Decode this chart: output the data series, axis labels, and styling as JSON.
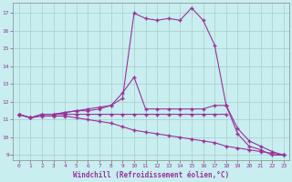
{
  "xlabel": "Windchill (Refroidissement éolien,°C)",
  "bg_color": "#c8eef0",
  "grid_color": "#aacccc",
  "line_color": "#993399",
  "xlim": [
    -0.5,
    23.5
  ],
  "ylim": [
    8.7,
    17.6
  ],
  "xticks": [
    0,
    1,
    2,
    3,
    4,
    5,
    6,
    7,
    8,
    9,
    10,
    11,
    12,
    13,
    14,
    15,
    16,
    17,
    18,
    19,
    20,
    21,
    22,
    23
  ],
  "yticks": [
    9,
    10,
    11,
    12,
    13,
    14,
    15,
    16,
    17
  ],
  "line1_x": [
    0,
    1,
    2,
    3,
    4,
    5,
    6,
    7,
    8,
    9,
    10,
    11,
    12,
    13,
    14,
    15,
    16,
    17,
    18,
    19,
    20,
    21,
    22,
    23
  ],
  "line1_y": [
    11.3,
    11.1,
    11.3,
    11.3,
    11.4,
    11.5,
    11.6,
    11.7,
    11.8,
    12.2,
    17.0,
    16.7,
    16.6,
    16.7,
    16.6,
    17.3,
    16.6,
    15.2,
    11.8,
    10.2,
    9.5,
    9.3,
    9.0,
    9.0
  ],
  "line2_x": [
    0,
    1,
    2,
    3,
    4,
    5,
    6,
    7,
    8,
    9,
    10,
    11,
    12,
    13,
    14,
    15,
    16,
    17,
    18,
    19,
    20,
    21,
    22,
    23
  ],
  "line2_y": [
    11.3,
    11.1,
    11.3,
    11.3,
    11.4,
    11.5,
    11.5,
    11.6,
    11.8,
    12.5,
    13.4,
    11.6,
    11.6,
    11.6,
    11.6,
    11.6,
    11.6,
    11.8,
    11.8,
    10.5,
    9.8,
    9.5,
    9.2,
    9.0
  ],
  "line3_x": [
    0,
    1,
    2,
    3,
    4,
    5,
    6,
    7,
    8,
    9,
    10,
    11,
    12,
    13,
    14,
    15,
    16,
    17,
    18
  ],
  "line3_y": [
    11.3,
    11.1,
    11.3,
    11.3,
    11.3,
    11.3,
    11.3,
    11.3,
    11.3,
    11.3,
    11.3,
    11.3,
    11.3,
    11.3,
    11.3,
    11.3,
    11.3,
    11.3,
    11.3
  ],
  "line4_x": [
    0,
    1,
    2,
    3,
    4,
    5,
    6,
    7,
    8,
    9,
    10,
    11,
    12,
    13,
    14,
    15,
    16,
    17,
    18,
    19,
    20,
    21,
    22,
    23
  ],
  "line4_y": [
    11.3,
    11.1,
    11.2,
    11.2,
    11.2,
    11.1,
    11.0,
    10.9,
    10.8,
    10.6,
    10.4,
    10.3,
    10.2,
    10.1,
    10.0,
    9.9,
    9.8,
    9.7,
    9.5,
    9.4,
    9.3,
    9.2,
    9.1,
    9.0
  ]
}
